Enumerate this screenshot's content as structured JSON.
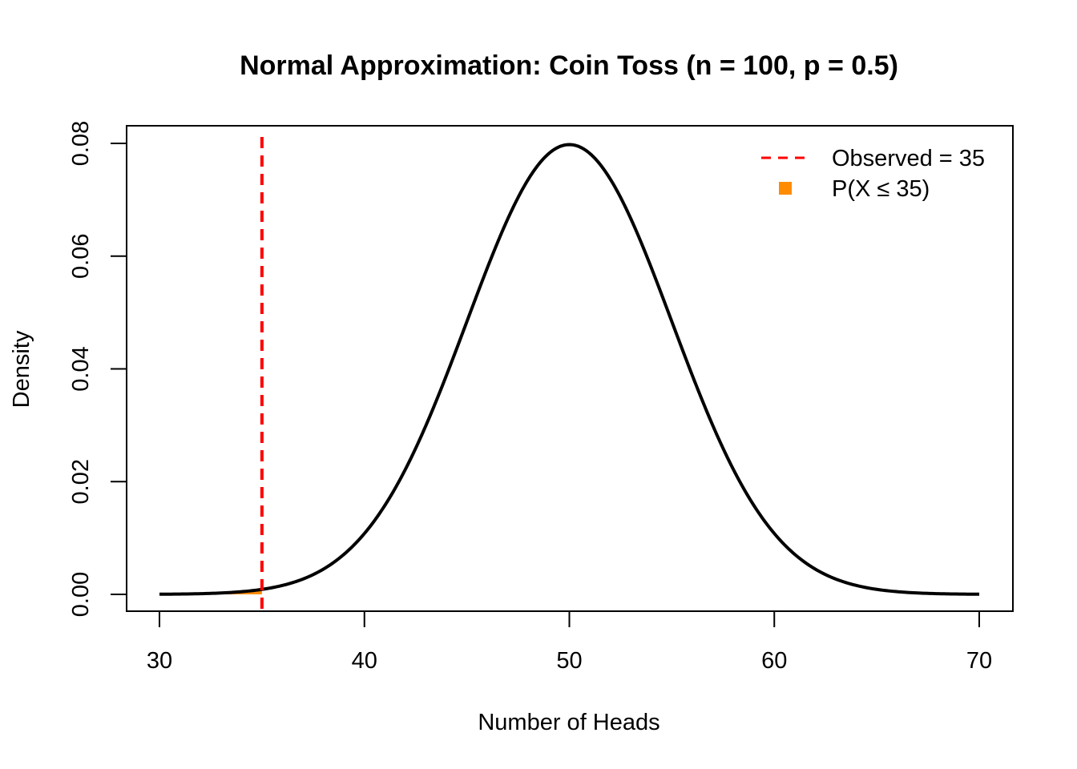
{
  "chart_data": {
    "type": "line",
    "title": "Normal Approximation: Coin Toss (n = 100, p = 0.5)",
    "xlabel": "Number of Heads",
    "ylabel": "Density",
    "xlim": [
      30,
      70
    ],
    "ylim": [
      0,
      0.08
    ],
    "x_ticks": [
      30,
      40,
      50,
      60,
      70
    ],
    "x_tick_labels": [
      "30",
      "40",
      "50",
      "60",
      "70"
    ],
    "y_ticks": [
      0,
      0.02,
      0.04,
      0.06,
      0.08
    ],
    "y_tick_labels": [
      "0.00",
      "0.02",
      "0.04",
      "0.06",
      "0.08"
    ],
    "series": [
      {
        "kind": "density-curve",
        "distribution": "normal",
        "mean": 50,
        "sd": 5,
        "x_range": [
          30,
          70
        ],
        "color": "#000000"
      }
    ],
    "shaded_region": {
      "x_from": 30,
      "x_to": 35,
      "color": "#FF8C00"
    },
    "vline": {
      "x": 35,
      "color": "#FF0000",
      "style": "dashed"
    },
    "legend": {
      "position": "top-right",
      "entries": [
        {
          "label": "Observed = 35",
          "marker": "dashed-line",
          "color": "#FF0000"
        },
        {
          "label": "P(X ≤ 35)",
          "marker": "square",
          "color": "#FF8C00"
        }
      ]
    },
    "grid": false
  }
}
